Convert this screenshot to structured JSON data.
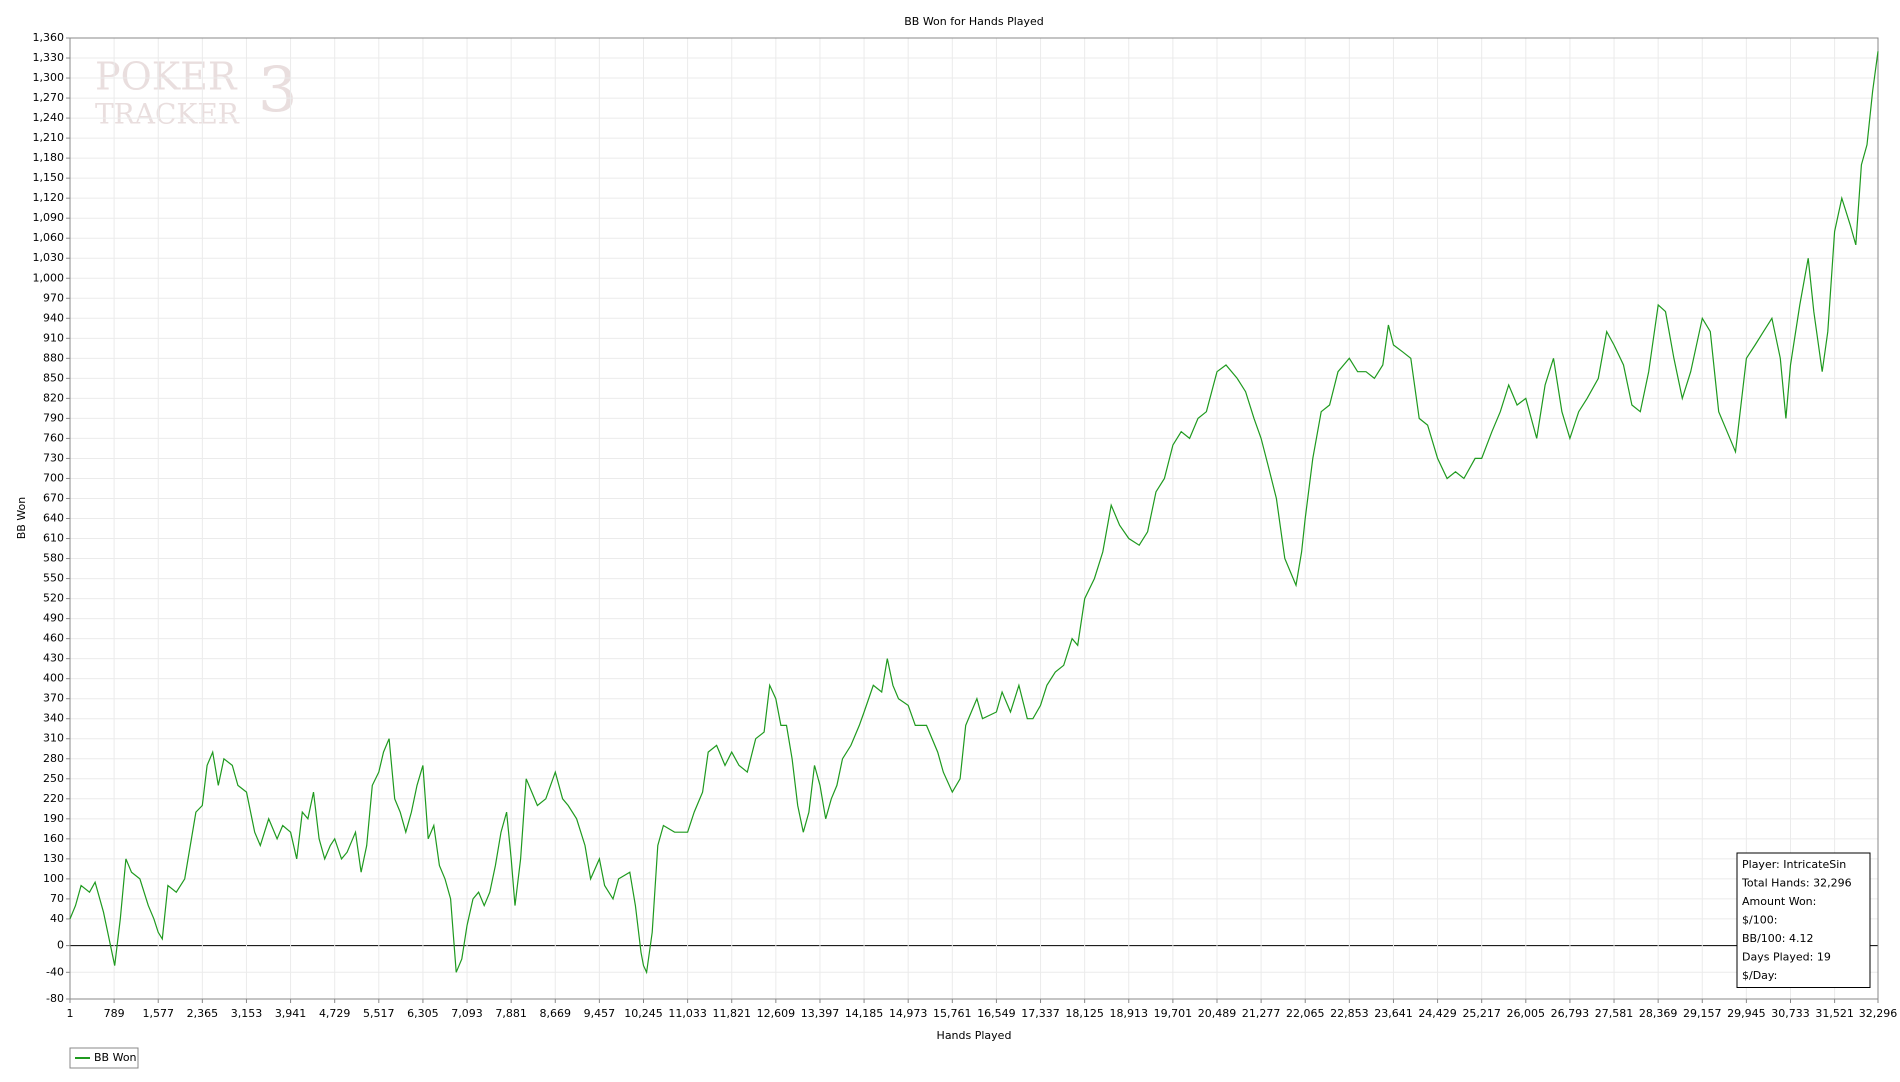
{
  "chart_data": {
    "type": "line",
    "title": "BB Won for Hands Played",
    "x_label": "Hands Played",
    "y_label": "BB Won",
    "watermark": {
      "word1": "POKER",
      "word2": "TRACKER",
      "digit": "3"
    },
    "info_box": [
      "Player: IntricateSin",
      "Total Hands: 32,296",
      "Amount Won:",
      "$/100:",
      "BB/100: 4.12",
      "Days Played: 19",
      "$/Day:"
    ],
    "legend": "bottom-left",
    "grid": true,
    "xlim": [
      1,
      32296
    ],
    "ylim": [
      -80,
      1360
    ],
    "xticks": [
      1,
      789,
      {
        "value": 1577,
        "label": "1,577"
      },
      {
        "value": 2365,
        "label": "2,365"
      },
      {
        "value": 3153,
        "label": "3,153"
      },
      {
        "value": 3941,
        "label": "3,941"
      },
      {
        "value": 4729,
        "label": "4,729"
      },
      {
        "value": 5517,
        "label": "5,517"
      },
      {
        "value": 6305,
        "label": "6,305"
      },
      {
        "value": 7093,
        "label": "7,093"
      },
      {
        "value": 7881,
        "label": "7,881"
      },
      {
        "value": 8669,
        "label": "8,669"
      },
      {
        "value": 9457,
        "label": "9,457"
      },
      {
        "value": 10245,
        "label": "10,245"
      },
      {
        "value": 11033,
        "label": "11,033"
      },
      {
        "value": 11821,
        "label": "11,821"
      },
      {
        "value": 12609,
        "label": "12,609"
      },
      {
        "value": 13397,
        "label": "13,397"
      },
      {
        "value": 14185,
        "label": "14,185"
      },
      {
        "value": 14973,
        "label": "14,973"
      },
      {
        "value": 15761,
        "label": "15,761"
      },
      {
        "value": 16549,
        "label": "16,549"
      },
      {
        "value": 17337,
        "label": "17,337"
      },
      {
        "value": 18125,
        "label": "18,125"
      },
      {
        "value": 18913,
        "label": "18,913"
      },
      {
        "value": 19701,
        "label": "19,701"
      },
      {
        "value": 20489,
        "label": "20,489"
      },
      {
        "value": 21277,
        "label": "21,277"
      },
      {
        "value": 22065,
        "label": "22,065"
      },
      {
        "value": 22853,
        "label": "22,853"
      },
      {
        "value": 23641,
        "label": "23,641"
      },
      {
        "value": 24429,
        "label": "24,429"
      },
      {
        "value": 25217,
        "label": "25,217"
      },
      {
        "value": 26005,
        "label": "26,005"
      },
      {
        "value": 26793,
        "label": "26,793"
      },
      {
        "value": 27581,
        "label": "27,581"
      },
      {
        "value": 28369,
        "label": "28,369"
      },
      {
        "value": 29157,
        "label": "29,157"
      },
      {
        "value": 29945,
        "label": "29,945"
      },
      {
        "value": 30733,
        "label": "30,733"
      },
      {
        "value": 31521,
        "label": "31,521"
      },
      {
        "value": 32296,
        "label": "32,296"
      }
    ],
    "yticks": [
      -80,
      -40,
      0,
      40,
      70,
      100,
      130,
      160,
      190,
      220,
      250,
      280,
      310,
      340,
      370,
      400,
      430,
      460,
      490,
      520,
      550,
      580,
      610,
      640,
      670,
      700,
      730,
      760,
      790,
      820,
      850,
      880,
      910,
      940,
      970,
      {
        "value": 1000,
        "label": "1,000"
      },
      {
        "value": 1030,
        "label": "1,030"
      },
      {
        "value": 1060,
        "label": "1,060"
      },
      {
        "value": 1090,
        "label": "1,090"
      },
      {
        "value": 1120,
        "label": "1,120"
      },
      {
        "value": 1150,
        "label": "1,150"
      },
      {
        "value": 1180,
        "label": "1,180"
      },
      {
        "value": 1210,
        "label": "1,210"
      },
      {
        "value": 1240,
        "label": "1,240"
      },
      {
        "value": 1270,
        "label": "1,270"
      },
      {
        "value": 1300,
        "label": "1,300"
      },
      {
        "value": 1330,
        "label": "1,330"
      },
      {
        "value": 1360,
        "label": "1,360"
      }
    ],
    "x": [
      1,
      100,
      200,
      350,
      450,
      600,
      700,
      800,
      900,
      1000,
      1100,
      1250,
      1400,
      1500,
      1577,
      1650,
      1750,
      1900,
      2050,
      2150,
      2250,
      2365,
      2450,
      2550,
      2650,
      2750,
      2900,
      3000,
      3153,
      3300,
      3400,
      3550,
      3700,
      3800,
      3941,
      4050,
      4150,
      4250,
      4350,
      4450,
      4550,
      4650,
      4729,
      4850,
      4950,
      5100,
      5200,
      5300,
      5400,
      5517,
      5600,
      5700,
      5800,
      5900,
      6000,
      6100,
      6200,
      6305,
      6400,
      6500,
      6600,
      6700,
      6800,
      6900,
      7000,
      7093,
      7200,
      7300,
      7400,
      7500,
      7600,
      7700,
      7800,
      7881,
      7950,
      8050,
      8150,
      8250,
      8350,
      8500,
      8669,
      8800,
      8900,
      9050,
      9200,
      9300,
      9457,
      9550,
      9700,
      9800,
      10000,
      10100,
      10200,
      10245,
      10300,
      10400,
      10500,
      10600,
      10800,
      11033,
      11150,
      11300,
      11400,
      11550,
      11700,
      11821,
      11950,
      12100,
      12250,
      12400,
      12500,
      12609,
      12700,
      12800,
      12900,
      13000,
      13100,
      13200,
      13300,
      13397,
      13500,
      13600,
      13700,
      13800,
      13950,
      14100,
      14185,
      14350,
      14500,
      14600,
      14700,
      14800,
      14973,
      15100,
      15300,
      15500,
      15600,
      15761,
      15900,
      16000,
      16100,
      16200,
      16300,
      16549,
      16650,
      16800,
      16950,
      17100,
      17200,
      17337,
      17450,
      17600,
      17750,
      17900,
      18000,
      18125,
      18300,
      18450,
      18600,
      18750,
      18913,
      19100,
      19250,
      19400,
      19550,
      19701,
      19850,
      20000,
      20150,
      20300,
      20489,
      20650,
      20850,
      21000,
      21150,
      21277,
      21400,
      21550,
      21700,
      21800,
      21900,
      22000,
      22065,
      22200,
      22350,
      22500,
      22650,
      22853,
      23000,
      23150,
      23300,
      23450,
      23550,
      23641,
      23800,
      23950,
      24100,
      24250,
      24429,
      24600,
      24750,
      24900,
      25100,
      25217,
      25400,
      25550,
      25700,
      25850,
      26005,
      26200,
      26350,
      26500,
      26650,
      26793,
      26950,
      27100,
      27300,
      27450,
      27581,
      27750,
      27900,
      28050,
      28200,
      28369,
      28500,
      28650,
      28800,
      28950,
      29157,
      29300,
      29450,
      29600,
      29750,
      29945,
      30100,
      30250,
      30400,
      30550,
      30650,
      30733,
      30900,
      31050,
      31150,
      31300,
      31400,
      31521,
      31650,
      31800,
      31900,
      32000,
      32100,
      32200,
      32296
    ],
    "series": [
      {
        "name": "BB Won",
        "color": "#1f9a1f",
        "values": [
          40,
          60,
          90,
          80,
          95,
          50,
          10,
          -30,
          40,
          130,
          110,
          100,
          60,
          40,
          20,
          10,
          90,
          80,
          100,
          150,
          200,
          210,
          270,
          290,
          240,
          280,
          270,
          240,
          230,
          170,
          150,
          190,
          160,
          180,
          170,
          130,
          200,
          190,
          230,
          160,
          130,
          150,
          160,
          130,
          140,
          170,
          110,
          150,
          240,
          260,
          290,
          310,
          220,
          200,
          170,
          200,
          240,
          270,
          160,
          180,
          120,
          100,
          70,
          -40,
          -20,
          30,
          70,
          80,
          60,
          80,
          120,
          170,
          200,
          130,
          60,
          130,
          250,
          230,
          210,
          220,
          260,
          220,
          210,
          190,
          150,
          100,
          130,
          90,
          70,
          100,
          110,
          60,
          -10,
          -30,
          -40,
          20,
          150,
          180,
          170,
          170,
          200,
          230,
          290,
          300,
          270,
          290,
          270,
          260,
          310,
          320,
          390,
          370,
          330,
          330,
          280,
          210,
          170,
          200,
          270,
          240,
          190,
          220,
          240,
          280,
          300,
          330,
          350,
          390,
          380,
          430,
          390,
          370,
          360,
          330,
          330,
          290,
          260,
          230,
          250,
          330,
          350,
          370,
          340,
          350,
          380,
          350,
          390,
          340,
          340,
          360,
          390,
          410,
          420,
          460,
          450,
          520,
          550,
          590,
          660,
          630,
          610,
          600,
          620,
          680,
          700,
          750,
          770,
          760,
          790,
          800,
          860,
          870,
          850,
          830,
          790,
          760,
          720,
          670,
          580,
          560,
          540,
          590,
          640,
          730,
          800,
          810,
          860,
          880,
          860,
          860,
          850,
          870,
          930,
          900,
          890,
          880,
          790,
          780,
          730,
          700,
          710,
          700,
          730,
          730,
          770,
          800,
          840,
          810,
          820,
          760,
          840,
          880,
          800,
          760,
          800,
          820,
          850,
          920,
          900,
          870,
          810,
          800,
          860,
          960,
          950,
          880,
          820,
          860,
          940,
          920,
          800,
          770,
          740,
          880,
          900,
          920,
          940,
          880,
          790,
          870,
          960,
          1030,
          950,
          860,
          920,
          1070,
          1120,
          1080,
          1050,
          1170,
          1200,
          1280,
          1340
        ]
      }
    ]
  }
}
